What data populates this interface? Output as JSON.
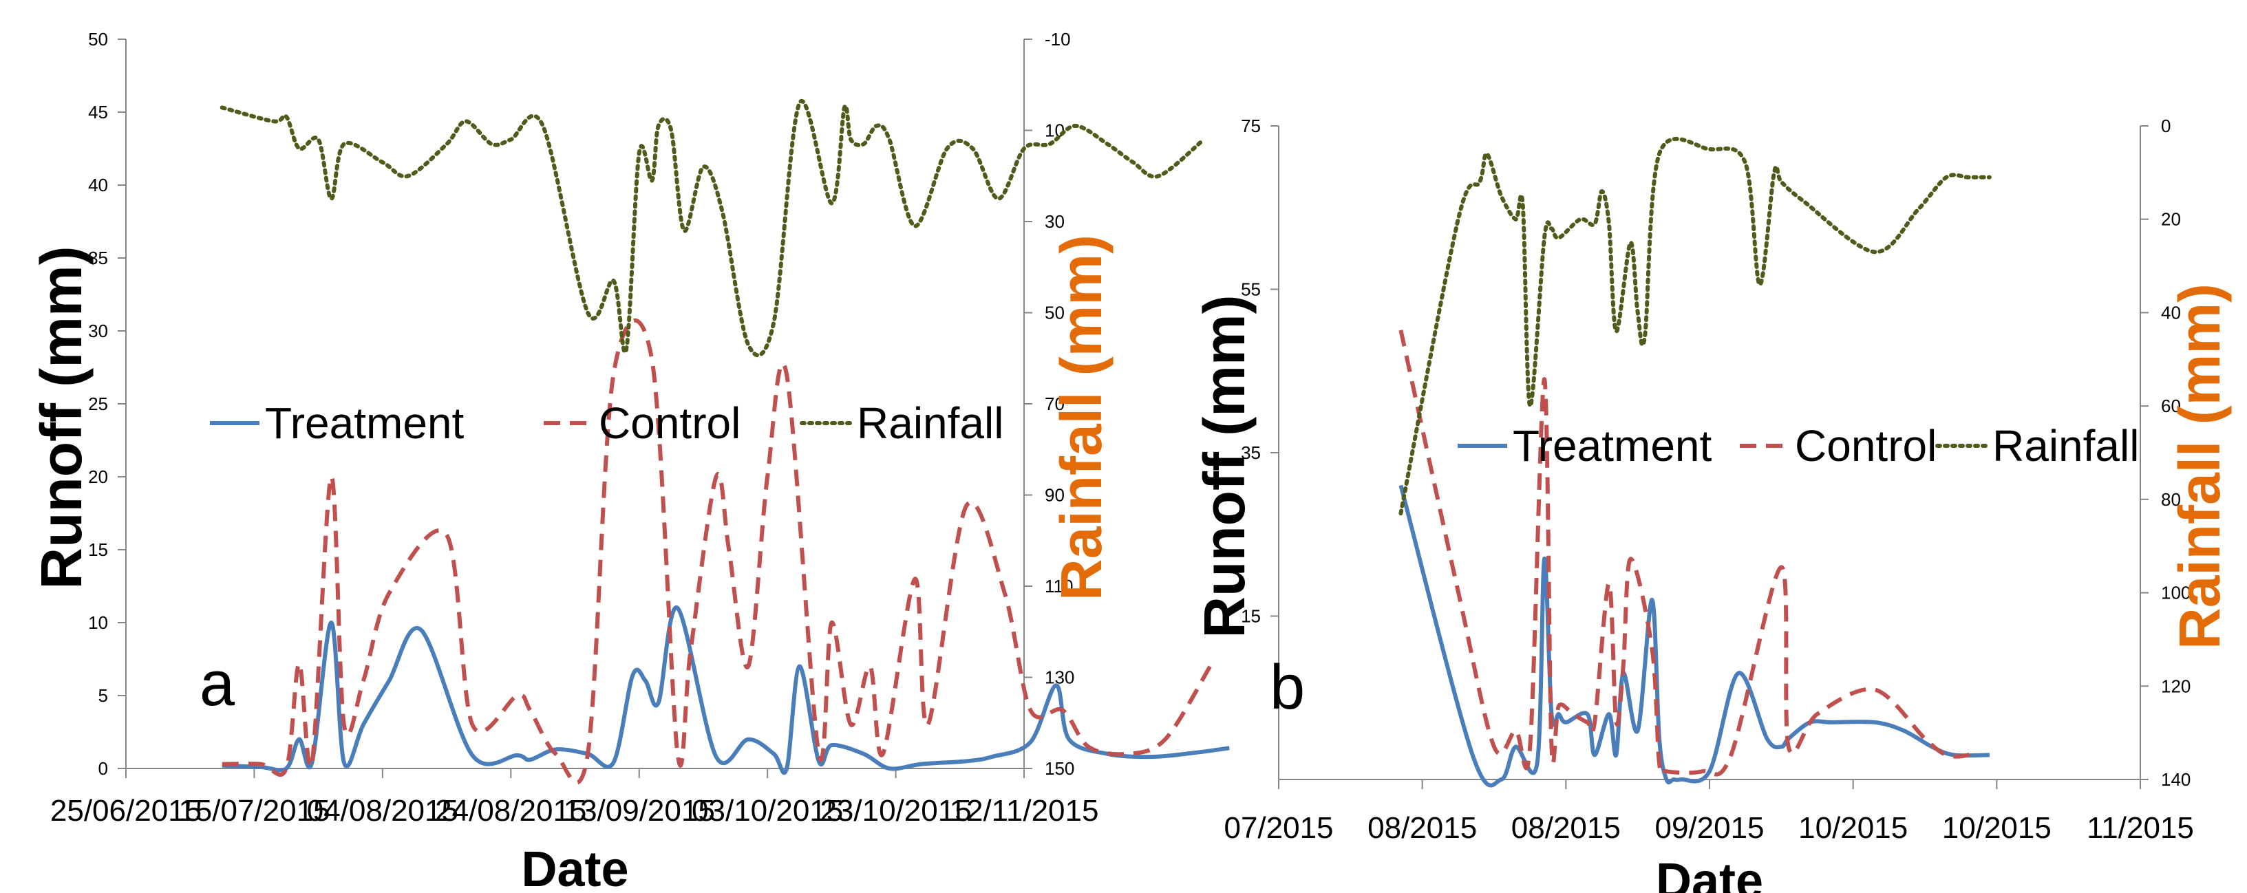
{
  "chart_data": [
    {
      "type": "line",
      "panel_label": "a",
      "xlabel": "Date",
      "ylabel": "Runoff (mm)",
      "y2label": "Rainfall (mm)",
      "ylim": [
        0,
        50
      ],
      "y_ticks": [
        0,
        5,
        10,
        15,
        20,
        25,
        30,
        35,
        40,
        45,
        50
      ],
      "y2lim": [
        -10,
        150
      ],
      "y2_inverted": true,
      "y2_ticks": [
        -10,
        10,
        30,
        50,
        70,
        90,
        110,
        130,
        150
      ],
      "x_tick_labels": [
        "25/06/2015",
        "15/07/2015",
        "04/08/2015",
        "24/08/2015",
        "13/09/2015",
        "03/10/2015",
        "23/10/2015",
        "12/11/2015"
      ],
      "x_tick_dates": [
        "2015-06-25",
        "2015-07-15",
        "2015-08-04",
        "2015-08-24",
        "2015-09-13",
        "2015-10-03",
        "2015-10-23",
        "2015-11-12"
      ],
      "legend_position": "middle",
      "series": [
        {
          "name": "Treatment",
          "axis": "left",
          "color": "#4a7ebb",
          "style": "solid",
          "x": [
            "2015-07-10",
            "2015-07-16",
            "2015-07-20",
            "2015-07-22",
            "2015-07-24",
            "2015-07-27",
            "2015-07-29",
            "2015-08-01",
            "2015-08-05",
            "2015-08-10",
            "2015-08-18",
            "2015-08-25",
            "2015-08-27",
            "2015-08-31",
            "2015-09-05",
            "2015-09-09",
            "2015-09-12",
            "2015-09-14",
            "2015-09-16",
            "2015-09-19",
            "2015-09-25",
            "2015-09-30",
            "2015-10-04",
            "2015-10-06",
            "2015-10-08",
            "2015-10-11",
            "2015-10-13",
            "2015-10-18",
            "2015-10-22",
            "2015-10-27",
            "2015-11-03",
            "2015-11-07",
            "2015-11-13",
            "2015-11-17",
            "2015-11-19",
            "2015-11-25",
            "2015-12-02",
            "2015-12-09",
            "2015-12-14"
          ],
          "y": [
            0.2,
            0.1,
            0,
            2,
            0.4,
            10,
            0.4,
            3,
            6,
            9.5,
            0.9,
            0.9,
            0.6,
            1.3,
            1,
            0.4,
            6.4,
            6,
            4.5,
            11,
            0.8,
            2,
            1,
            0,
            7,
            0.5,
            1.6,
            1,
            0,
            0.3,
            0.5,
            0.8,
            1.8,
            5.7,
            2,
            1,
            0.8,
            1.1,
            1.4
          ]
        },
        {
          "name": "Control",
          "axis": "left",
          "color": "#c0504d",
          "style": "dashed",
          "x": [
            "2015-07-10",
            "2015-07-16",
            "2015-07-20",
            "2015-07-22",
            "2015-07-24",
            "2015-07-27",
            "2015-07-29",
            "2015-08-01",
            "2015-08-05",
            "2015-08-14",
            "2015-08-18",
            "2015-08-25",
            "2015-08-27",
            "2015-08-31",
            "2015-09-05",
            "2015-09-09",
            "2015-09-15",
            "2015-09-19",
            "2015-09-21",
            "2015-09-25",
            "2015-09-27",
            "2015-09-30",
            "2015-10-03",
            "2015-10-06",
            "2015-10-11",
            "2015-10-13",
            "2015-10-16",
            "2015-10-19",
            "2015-10-21",
            "2015-10-26",
            "2015-10-28",
            "2015-11-03",
            "2015-11-09",
            "2015-11-13",
            "2015-11-18",
            "2015-11-22",
            "2015-11-28",
            "2015-12-04",
            "2015-12-11"
          ],
          "y": [
            0.3,
            0.3,
            0,
            7.2,
            0.4,
            20,
            3,
            6,
            12,
            16,
            3,
            5,
            4,
            1,
            1,
            27,
            28,
            1,
            8,
            20,
            15,
            7,
            20,
            27,
            1,
            10,
            3,
            7,
            1,
            13,
            3,
            18,
            12,
            4,
            4,
            1.5,
            1,
            2,
            7
          ]
        },
        {
          "name": "Rainfall",
          "axis": "right",
          "color": "#4f5b1a",
          "style": "dotted",
          "x": [
            "2015-07-10",
            "2015-07-18",
            "2015-07-20",
            "2015-07-22",
            "2015-07-25",
            "2015-07-27",
            "2015-07-29",
            "2015-08-04",
            "2015-08-08",
            "2015-08-14",
            "2015-08-17",
            "2015-08-21",
            "2015-08-24",
            "2015-08-29",
            "2015-09-05",
            "2015-09-09",
            "2015-09-11",
            "2015-09-13",
            "2015-09-15",
            "2015-09-16",
            "2015-09-18",
            "2015-09-20",
            "2015-09-23",
            "2015-09-26",
            "2015-09-30",
            "2015-10-04",
            "2015-10-08",
            "2015-10-13",
            "2015-10-15",
            "2015-10-16",
            "2015-10-18",
            "2015-10-20",
            "2015-10-22",
            "2015-10-26",
            "2015-10-31",
            "2015-11-04",
            "2015-11-08",
            "2015-11-12",
            "2015-11-16",
            "2015-11-20",
            "2015-11-25",
            "2015-11-29",
            "2015-12-03",
            "2015-12-10"
          ],
          "y": [
            5,
            8,
            7,
            14,
            12,
            25,
            13,
            17,
            20,
            13,
            8,
            13,
            12,
            9,
            50,
            43,
            58,
            15,
            21,
            9,
            10,
            32,
            18,
            28,
            57,
            52,
            4,
            26,
            5,
            12,
            13,
            9,
            12,
            31,
            14,
            14,
            25,
            14,
            13,
            9,
            13,
            17,
            20,
            12
          ]
        }
      ]
    },
    {
      "type": "line",
      "panel_label": "b",
      "xlabel": "Date",
      "ylabel": "Runoff (mm)",
      "y2label": "Rainfall (mm)",
      "ylim": [
        -5,
        75
      ],
      "y_ticks_shown": [
        15,
        35,
        55,
        75
      ],
      "y2lim": [
        0,
        140
      ],
      "y2_inverted": true,
      "y2_ticks": [
        0,
        20,
        40,
        60,
        80,
        100,
        120,
        140
      ],
      "x_tick_labels": [
        "07/2015",
        "08/2015",
        "08/2015",
        "09/2015",
        "10/2015",
        "10/2015",
        "11/2015"
      ],
      "x_tick_dates": [
        "2015-07-01",
        "2015-07-21",
        "2015-08-10",
        "2015-08-30",
        "2015-09-19",
        "2015-10-09",
        "2015-10-29"
      ],
      "legend_position": "middle",
      "series": [
        {
          "name": "Treatment",
          "axis": "left",
          "color": "#4a7ebb",
          "style": "solid",
          "x": [
            "2015-07-18",
            "2015-07-28",
            "2015-08-01",
            "2015-08-03",
            "2015-08-06",
            "2015-08-07",
            "2015-08-08",
            "2015-08-09",
            "2015-08-10",
            "2015-08-13",
            "2015-08-14",
            "2015-08-16",
            "2015-08-17",
            "2015-08-18",
            "2015-08-20",
            "2015-08-22",
            "2015-08-23",
            "2015-08-24",
            "2015-08-25",
            "2015-08-26",
            "2015-08-30",
            "2015-09-03",
            "2015-09-07",
            "2015-09-09",
            "2015-09-10",
            "2015-09-13",
            "2015-09-16",
            "2015-09-22",
            "2015-09-26",
            "2015-09-30",
            "2015-10-03",
            "2015-10-08"
          ],
          "y": [
            31,
            -2,
            -5,
            -1,
            -3,
            22,
            3,
            3,
            2,
            3,
            -2,
            3,
            -2,
            8,
            1,
            17,
            0,
            -5,
            -5,
            -5,
            -4,
            8,
            0,
            -1,
            0,
            2,
            2,
            2,
            1,
            -1,
            -2,
            -2
          ]
        },
        {
          "name": "Control",
          "axis": "left",
          "color": "#c0504d",
          "style": "dashed",
          "x": [
            "2015-07-18",
            "2015-07-26",
            "2015-07-31",
            "2015-08-03",
            "2015-08-05",
            "2015-08-07",
            "2015-08-08",
            "2015-08-09",
            "2015-08-11",
            "2015-08-13",
            "2015-08-14",
            "2015-08-16",
            "2015-08-17",
            "2015-08-18",
            "2015-08-19",
            "2015-08-22",
            "2015-08-23",
            "2015-08-24",
            "2015-08-29",
            "2015-09-02",
            "2015-09-09",
            "2015-09-10",
            "2015-09-14",
            "2015-09-22",
            "2015-09-29",
            "2015-10-02",
            "2015-10-05",
            "2015-10-06"
          ],
          "y": [
            50,
            18,
            -1,
            1,
            -1,
            44,
            -1,
            4,
            3,
            2,
            2,
            19,
            2,
            9,
            22,
            11,
            -3,
            -4,
            -4,
            -2,
            21,
            -1,
            3,
            6,
            0,
            -2,
            -2,
            -1
          ]
        },
        {
          "name": "Rainfall",
          "axis": "right",
          "color": "#4f5b1a",
          "style": "dotted",
          "x": [
            "2015-07-18",
            "2015-07-26",
            "2015-07-29",
            "2015-07-30",
            "2015-08-01",
            "2015-08-03",
            "2015-08-04",
            "2015-08-05",
            "2015-08-07",
            "2015-08-08",
            "2015-08-09",
            "2015-08-12",
            "2015-08-14",
            "2015-08-15",
            "2015-08-16",
            "2015-08-17",
            "2015-08-19",
            "2015-08-20",
            "2015-08-21",
            "2015-08-23",
            "2015-08-30",
            "2015-09-04",
            "2015-09-06",
            "2015-09-08",
            "2015-09-09",
            "2015-09-12",
            "2015-09-22",
            "2015-09-28",
            "2015-10-02",
            "2015-10-05",
            "2015-10-08"
          ],
          "y": [
            83,
            20,
            12,
            6,
            15,
            20,
            17,
            60,
            24,
            22,
            24,
            20,
            21,
            14,
            21,
            44,
            25,
            40,
            45,
            6,
            5,
            8,
            34,
            10,
            12,
            16,
            27,
            18,
            11,
            11,
            11
          ]
        }
      ]
    }
  ]
}
